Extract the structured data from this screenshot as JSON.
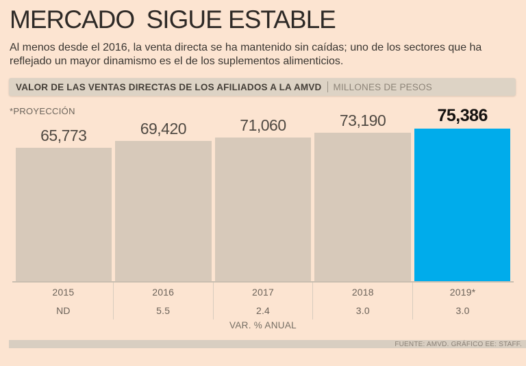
{
  "title": "MERCADO SIGUE ESTABLE",
  "subtitle": "Al menos desde el 2016, la venta directa se ha mantenido sin caídas; uno de los sectores que ha reflejado un mayor dinamismo es el de los suplementos alimenticios.",
  "header_bar": {
    "label_bold": "VALOR DE LAS VENTAS DIRECTAS DE LOS AFILIADOS A LA AMVD",
    "label_light": "MILLONES DE PESOS"
  },
  "projection_note": "*PROYECCIÓN",
  "chart_data": {
    "type": "bar",
    "title": "VALOR DE LAS VENTAS DIRECTAS DE LOS AFILIADOS A LA AMVD",
    "units": "MILLONES DE PESOS",
    "categories": [
      "2015",
      "2016",
      "2017",
      "2018",
      "2019*"
    ],
    "values": [
      65773,
      69420,
      71060,
      73190,
      75386
    ],
    "value_labels": [
      "65,773",
      "69,420",
      "71,060",
      "73,190",
      "75,386"
    ],
    "variation_row": [
      "ND",
      "5.5",
      "2.4",
      "3.0",
      "3.0"
    ],
    "variation_label": "VAR. % ANUAL",
    "highlight_index": 4,
    "bar_color": "#d7c9ba",
    "highlight_color": "#00aceb",
    "ylim": [
      0,
      88000
    ],
    "grid": false,
    "legend": "none"
  },
  "footer": {
    "source": "FUENTE: AMVD. GRÁFICO EE: STAFF."
  },
  "colors": {
    "background": "#fce4d1",
    "title_text": "#2d2926",
    "kicker_bg": "#ddd3c5",
    "bar": "#d7c9ba",
    "highlight": "#00aceb",
    "baseline": "#c9beb0",
    "footer_bg": "#d8cec1"
  }
}
